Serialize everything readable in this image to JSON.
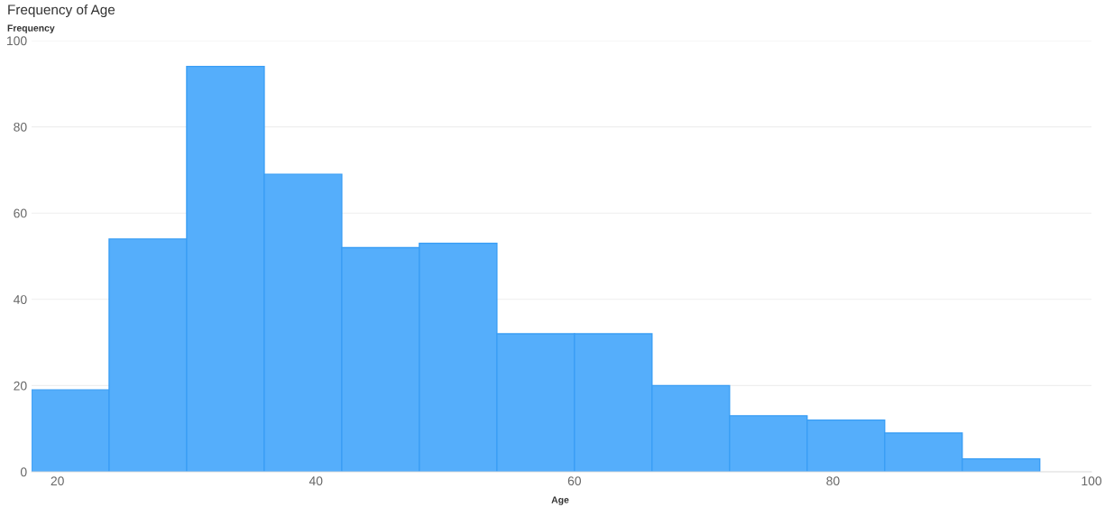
{
  "chart_data": {
    "type": "histogram",
    "title": "Frequency of Age",
    "xlabel": "Age",
    "ylabel": "Frequency",
    "bins": [
      18,
      24,
      30,
      36,
      42,
      48,
      54,
      60,
      66,
      72,
      78,
      84,
      90,
      96
    ],
    "values": [
      19,
      54,
      94,
      69,
      52,
      53,
      32,
      32,
      20,
      13,
      12,
      9,
      3
    ],
    "color": "#55aefb",
    "xlim": [
      18,
      100
    ],
    "xticks": [
      20,
      40,
      60,
      80,
      100
    ],
    "ylim": [
      0,
      100
    ],
    "yticks": [
      0,
      20,
      40,
      60,
      80,
      100
    ],
    "grid": "y"
  }
}
